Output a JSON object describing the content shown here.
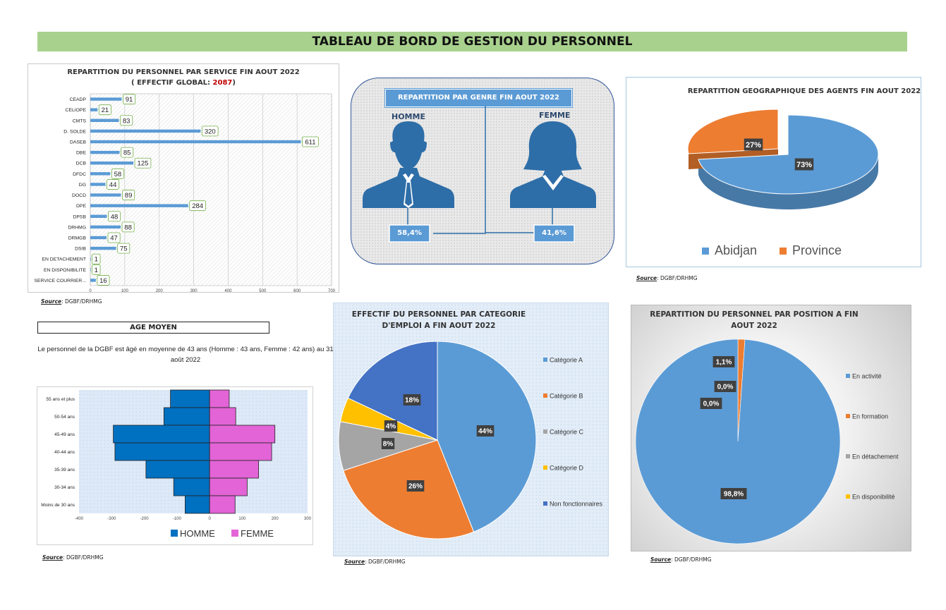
{
  "dashboard_title": "TABLEAU DE BORD DE GESTION DU PERSONNEL",
  "source": {
    "label": "Source",
    "value": ": DGBF/DRHMG"
  },
  "service_chart": {
    "title_line1": "REPARTITION DU PERSONNEL PAR SERVICE FIN AOUT 2022",
    "title_line2_prefix": "( EFFECTIF GLOBAL: ",
    "title_total": "2087",
    "title_line2_suffix": ")",
    "total_color": "#c00000"
  },
  "gender": {
    "title": "REPARTITION PAR GENRE FIN AOUT 2022",
    "male_label": "HOMME",
    "female_label": "FEMME",
    "male_pct": "58,4%",
    "female_pct": "41,6%",
    "figure_color": "#2e6ea8"
  },
  "geo_chart": {
    "title": "REPARTITION GEOGRAPHIQUE DES AGENTS FIN AOUT 2022"
  },
  "age": {
    "box_title": "AGE MOYEN",
    "text": "Le personnel de la DGBF est âgé en moyenne de 43 ans (Homme : 43 ans, Femme : 42 ans) au 31 août 2022"
  },
  "category_chart": {
    "title_line1": "EFFECTIF DU PERSONNEL PAR CATEGORIE",
    "title_line2": "D'EMPLOI A FIN AOUT 2022"
  },
  "position_chart": {
    "title_line1": "REPARTITION DU PERSONNEL PAR POSITION A FIN",
    "title_line2": "AOUT 2022"
  },
  "chart_data": [
    {
      "id": "service",
      "type": "bar",
      "orientation": "horizontal",
      "categories": [
        "CEADP",
        "CELIOPE",
        "CMTS",
        "D. SOLDE",
        "DASEB",
        "DBE",
        "DCB",
        "DFDC",
        "DG",
        "DOCD",
        "DPE",
        "DPSB",
        "DRHMG",
        "DRMGB",
        "DSIB",
        "EN DETACHEMENT",
        "EN DISPONIBILITE",
        "SERVICE COURRIER..."
      ],
      "values": [
        91,
        21,
        83,
        320,
        611,
        85,
        125,
        58,
        44,
        89,
        284,
        48,
        88,
        47,
        75,
        1,
        1,
        16
      ],
      "xlim": [
        0,
        700
      ],
      "xticks": [
        0,
        100,
        200,
        300,
        400,
        500,
        600,
        700
      ],
      "bar_color": "#5b9bd5",
      "grid": true
    },
    {
      "id": "geo",
      "type": "pie",
      "labels": [
        "Abidjan",
        "Province"
      ],
      "values": [
        73,
        27
      ],
      "value_labels": [
        "73%",
        "27%"
      ],
      "colors": [
        "#5b9bd5",
        "#ed7d31"
      ],
      "legend": "bottom"
    },
    {
      "id": "age_pyramid",
      "type": "bar",
      "orientation": "horizontal",
      "categories": [
        "55 ans et plus",
        "50-54 ans",
        "45-49 ans",
        "40-44 ans",
        "35-39 ans",
        "30-34 ans",
        "Moins de 30 ans"
      ],
      "series": [
        {
          "name": "HOMME",
          "values": [
            -120,
            -140,
            -295,
            -290,
            -195,
            -110,
            -75
          ],
          "color": "#0070c0"
        },
        {
          "name": "FEMME",
          "values": [
            60,
            80,
            200,
            190,
            150,
            115,
            78
          ],
          "color": "#e264d6"
        }
      ],
      "xlim": [
        -400,
        300
      ],
      "xticks": [
        -400,
        -300,
        -200,
        -100,
        0,
        100,
        200,
        300
      ],
      "legend": "bottom"
    },
    {
      "id": "category",
      "type": "pie",
      "labels": [
        "Catégorie A",
        "Catégorie B",
        "Catégorie C",
        "Catégorie D",
        "Non fonctionnaires"
      ],
      "values": [
        44,
        26,
        8,
        4,
        18
      ],
      "value_labels": [
        "44%",
        "26%",
        "8%",
        "4%",
        "18%"
      ],
      "colors": [
        "#5b9bd5",
        "#ed7d31",
        "#a5a5a5",
        "#ffc000",
        "#4472c4"
      ],
      "legend": "right"
    },
    {
      "id": "position",
      "type": "pie",
      "labels": [
        "En activité",
        "En formation",
        "En détachement",
        "En disponibilité"
      ],
      "values": [
        98.8,
        1.1,
        0.0,
        0.0
      ],
      "value_labels": [
        "98,8%",
        "1,1%",
        "0,0%",
        "0,0%"
      ],
      "colors": [
        "#5b9bd5",
        "#ed7d31",
        "#a5a5a5",
        "#ffc000"
      ],
      "legend": "right"
    }
  ]
}
